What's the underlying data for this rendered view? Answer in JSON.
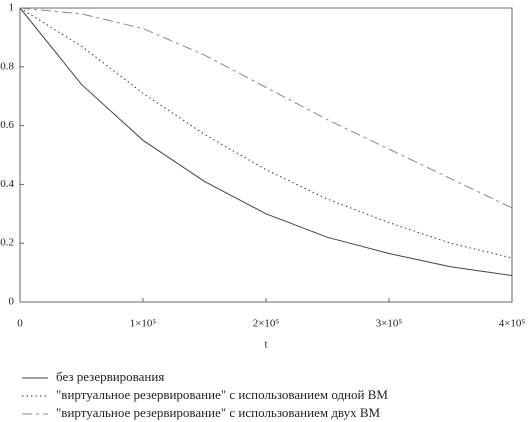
{
  "chart_data": {
    "type": "line",
    "x_label": "t",
    "x": [
      0,
      50000,
      100000,
      150000,
      200000,
      250000,
      300000,
      350000,
      400000
    ],
    "series": [
      {
        "name": "без резервирования",
        "color": "#444444",
        "style": "solid",
        "values": [
          1,
          0.74,
          0.55,
          0.41,
          0.3,
          0.22,
          0.165,
          0.12,
          0.09
        ]
      },
      {
        "name": "\"виртуальное резервирование\" с использованием одной ВМ",
        "color": "#333333",
        "style": "dotted",
        "values": [
          1,
          0.87,
          0.71,
          0.57,
          0.45,
          0.35,
          0.27,
          0.2,
          0.15
        ]
      },
      {
        "name": "\"виртуальное резервирование\" с использованием двух ВМ",
        "color": "#888888",
        "style": "dashed",
        "values": [
          1,
          0.98,
          0.93,
          0.84,
          0.73,
          0.62,
          0.52,
          0.42,
          0.32
        ]
      }
    ],
    "xlim": [
      0,
      400000
    ],
    "ylim": [
      0,
      1
    ],
    "xticks": [
      0,
      {
        "value": 100000,
        "label": "1×10⁵"
      },
      {
        "value": 200000,
        "label": "2×10⁵"
      },
      {
        "value": 300000,
        "label": "3×10⁵"
      },
      {
        "value": 400000,
        "label": "4×10⁵"
      }
    ],
    "yticks": [
      0,
      0.2,
      0.4,
      0.6,
      0.8,
      1
    ],
    "grid": false,
    "legend": "bottom"
  }
}
